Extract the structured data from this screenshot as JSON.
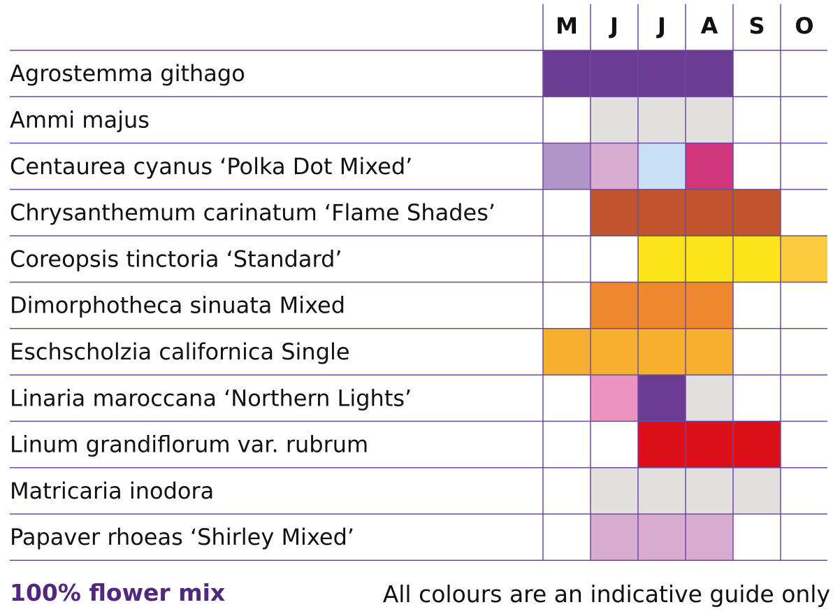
{
  "chart_data": {
    "type": "table",
    "months": [
      "M",
      "J",
      "J",
      "A",
      "S",
      "O"
    ],
    "rows": [
      {
        "label": "Agrostemma githago",
        "cells": [
          "#6b3d92",
          "#6b3d92",
          "#6b3d92",
          "#6b3d92",
          null,
          null
        ]
      },
      {
        "label": "Ammi majus",
        "cells": [
          null,
          "#e2dfdf",
          "#e2dfdf",
          "#e2dfdf",
          null,
          null
        ]
      },
      {
        "label": "Centaurea cyanus ‘Polka Dot Mixed’",
        "cells": [
          "#b195c8",
          "#d8abd3",
          "#c8e0f5",
          "#d1357e",
          null,
          null
        ]
      },
      {
        "label": "Chrysanthemum carinatum ‘Flame Shades’",
        "cells": [
          null,
          "#c2552e",
          "#c2552e",
          "#c2552e",
          "#c2552e",
          null
        ]
      },
      {
        "label": "Coreopsis tinctoria ‘Standard’",
        "cells": [
          null,
          null,
          "#fde41a",
          "#fde41a",
          "#fde41a",
          "#fbcb3f"
        ]
      },
      {
        "label": "Dimorphotheca sinuata Mixed",
        "cells": [
          null,
          "#ef8730",
          "#ef8730",
          "#ef8730",
          null,
          null
        ]
      },
      {
        "label": "Eschscholzia californica Single",
        "cells": [
          "#f7b02d",
          "#f7b02d",
          "#f7b02d",
          "#f7b02d",
          null,
          null
        ]
      },
      {
        "label": "Linaria maroccana ‘Northern Lights’",
        "cells": [
          null,
          "#ec94c1",
          "#6b3d92",
          "#e2dfdf",
          null,
          null
        ]
      },
      {
        "label": "Linum grandiflorum var. rubrum",
        "cells": [
          null,
          null,
          "#dd0f18",
          "#dd0f18",
          "#dd0f18",
          null
        ]
      },
      {
        "label": "Matricaria inodora",
        "cells": [
          null,
          "#e2dfdf",
          "#e2dfdf",
          "#e2dfdf",
          "#e2dfdf",
          null
        ]
      },
      {
        "label": "Papaver rhoeas ‘Shirley Mixed’",
        "cells": [
          null,
          "#d8abd3",
          "#d8abd3",
          "#d8abd3",
          null,
          null
        ]
      }
    ],
    "grid_color": "#6e4a9e"
  },
  "footer": {
    "mix_label": "100% flower mix",
    "note": "All colours are an indicative guide only"
  }
}
